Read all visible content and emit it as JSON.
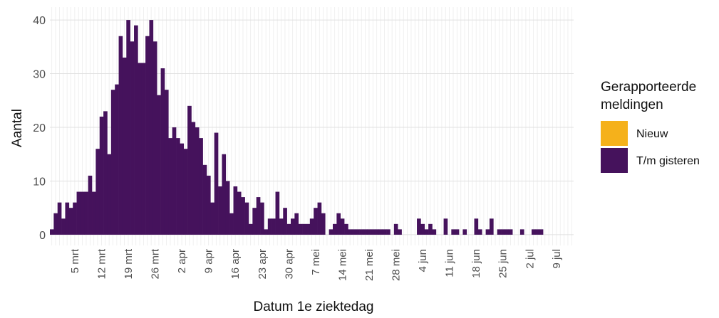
{
  "chart_data": {
    "type": "stacked_bar",
    "x_label": "Datum 1e ziektedag",
    "y_label": "Aantal",
    "legend_title": "Gerapporteerde meldingen",
    "categories": [
      null,
      null,
      null,
      null,
      null,
      null,
      "5 mrt",
      null,
      null,
      null,
      null,
      null,
      null,
      "12 mrt",
      null,
      null,
      null,
      null,
      null,
      null,
      "19 mrt",
      null,
      null,
      null,
      null,
      null,
      null,
      "26 mrt",
      null,
      null,
      null,
      null,
      null,
      null,
      "2 apr",
      null,
      null,
      null,
      null,
      null,
      null,
      "9 apr",
      null,
      null,
      null,
      null,
      null,
      null,
      "16 apr",
      null,
      null,
      null,
      null,
      null,
      null,
      "23 apr",
      null,
      null,
      null,
      null,
      null,
      null,
      "30 apr",
      null,
      null,
      null,
      null,
      null,
      null,
      "7 mei",
      null,
      null,
      null,
      null,
      null,
      null,
      "14 mei",
      null,
      null,
      null,
      null,
      null,
      null,
      "21 mei",
      null,
      null,
      null,
      null,
      null,
      null,
      "28 mei",
      null,
      null,
      null,
      null,
      null,
      null,
      "4 jun",
      null,
      null,
      null,
      null,
      null,
      null,
      "11 jun",
      null,
      null,
      null,
      null,
      null,
      null,
      "18 jun",
      null,
      null,
      null,
      null,
      null,
      null,
      "25 jun",
      null,
      null,
      null,
      null,
      null,
      null,
      "2 jul",
      null,
      null,
      null,
      null,
      null,
      null,
      "9 jul",
      null,
      null,
      null,
      null
    ],
    "series": [
      {
        "name": "Nieuw",
        "color": "#f5b11b",
        "values": [
          0,
          0,
          0,
          0,
          0,
          0,
          0,
          0,
          0,
          0,
          0,
          0,
          0,
          0,
          0,
          0,
          0,
          0,
          0,
          0,
          0,
          0,
          0,
          0,
          0,
          0,
          0,
          0,
          0,
          0,
          0,
          0,
          0,
          0,
          0,
          0,
          0,
          0,
          0,
          0,
          0,
          0,
          0,
          0,
          0,
          0,
          0,
          0,
          0,
          0,
          0,
          0,
          0,
          0,
          0,
          0,
          0,
          0,
          0,
          0,
          0,
          0,
          0,
          0,
          0,
          0,
          0,
          0,
          0,
          0,
          0,
          0,
          0,
          0,
          0,
          0,
          0,
          0,
          0,
          0,
          0,
          0,
          0,
          0,
          0,
          0,
          0,
          0,
          0,
          0,
          0,
          0,
          0,
          0,
          0,
          0,
          0,
          0,
          0,
          0,
          0,
          0,
          0,
          0,
          0,
          0,
          0,
          0,
          0,
          0,
          0,
          0,
          0,
          0,
          0,
          0,
          0,
          0,
          0,
          0,
          0,
          0,
          0,
          0,
          0,
          0,
          0,
          0,
          0,
          0,
          0,
          0,
          0,
          0,
          0,
          0,
          0
        ]
      },
      {
        "name": "T/m gisteren",
        "color": "#45125c",
        "values": [
          1,
          4,
          6,
          3,
          6,
          5,
          6,
          8,
          8,
          8,
          11,
          8,
          16,
          22,
          23,
          15,
          27,
          28,
          37,
          33,
          40,
          36,
          39,
          32,
          32,
          37,
          40,
          36,
          26,
          31,
          27,
          18,
          20,
          18,
          17,
          16,
          24,
          21,
          20,
          18,
          13,
          11,
          6,
          19,
          9,
          15,
          10,
          4,
          9,
          8,
          7,
          6,
          2,
          5,
          7,
          6,
          1,
          3,
          3,
          8,
          3,
          5,
          2,
          3,
          4,
          2,
          2,
          2,
          3,
          5,
          6,
          4,
          0,
          1,
          2,
          4,
          3,
          2,
          1,
          1,
          1,
          1,
          1,
          1,
          1,
          1,
          1,
          1,
          1,
          0,
          2,
          1,
          0,
          0,
          0,
          0,
          3,
          2,
          1,
          2,
          1,
          0,
          0,
          3,
          0,
          1,
          1,
          0,
          1,
          0,
          0,
          3,
          1,
          0,
          1,
          3,
          0,
          1,
          1,
          1,
          1,
          0,
          0,
          1,
          0,
          0,
          1,
          1,
          1,
          0,
          0,
          0,
          0,
          0,
          0,
          0,
          0
        ]
      }
    ],
    "ylim": [
      -2,
      42.4
    ],
    "yticks": [
      0,
      10,
      20,
      30,
      40
    ],
    "grid": true
  }
}
